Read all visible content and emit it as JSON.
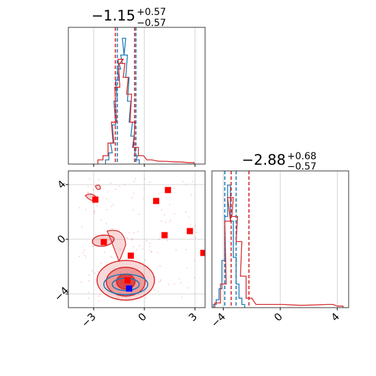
{
  "colors": {
    "blue": "#1f77b4",
    "red": "#d62728",
    "marker_red": "#ff0000",
    "marker_blue": "#0000ff",
    "grid": "#b0b0b0"
  },
  "titles": {
    "p1": {
      "center": "−1.15",
      "sup": "+0.57",
      "sub": "−0.57"
    },
    "p2": {
      "center": "−2.88",
      "sup": "+0.68",
      "sub": "−0.57"
    }
  },
  "chart_data": [
    {
      "type": "histogram",
      "panel": "top-left",
      "xlim": [
        -4.5,
        3.6
      ],
      "xticks": [
        -3,
        0,
        3
      ],
      "grid": true,
      "series": [
        {
          "name": "",
          "color": "#1f77b4",
          "bins": [
            [
              -2.2,
              0.03
            ],
            [
              -2.0,
              0.08
            ],
            [
              -1.9,
              0.15
            ],
            [
              -1.8,
              0.28
            ],
            [
              -1.7,
              0.45
            ],
            [
              -1.6,
              0.6
            ],
            [
              -1.5,
              0.68
            ],
            [
              -1.4,
              0.72
            ],
            [
              -1.3,
              0.78
            ],
            [
              -1.2,
              0.9
            ],
            [
              -1.1,
              0.78
            ],
            [
              -1.0,
              0.62
            ],
            [
              -0.9,
              0.45
            ],
            [
              -0.8,
              0.3
            ],
            [
              -0.7,
              0.2
            ],
            [
              -0.6,
              0.12
            ],
            [
              -0.5,
              0.06
            ],
            [
              -0.4,
              0.03
            ]
          ],
          "lines": [
            -1.6,
            -0.5
          ]
        },
        {
          "name": "",
          "color": "#d62728",
          "bins": [
            [
              -2.6,
              0.03
            ],
            [
              -2.3,
              0.06
            ],
            [
              -2.0,
              0.15
            ],
            [
              -1.8,
              0.3
            ],
            [
              -1.6,
              0.55
            ],
            [
              -1.4,
              0.75
            ],
            [
              -1.3,
              0.72
            ],
            [
              -1.1,
              0.62
            ],
            [
              -0.9,
              0.5
            ],
            [
              -0.7,
              0.3
            ],
            [
              -0.5,
              0.12
            ],
            [
              -0.2,
              0.06
            ],
            [
              0.3,
              0.03
            ],
            [
              1.0,
              0.02
            ],
            [
              2.0,
              0.015
            ],
            [
              2.8,
              0.01
            ]
          ],
          "lines": [
            -1.72,
            -0.58
          ]
        }
      ]
    },
    {
      "type": "histogram",
      "panel": "bottom-right",
      "xlim": [
        -4.8,
        4.8
      ],
      "xticks": [
        -4,
        0,
        4
      ],
      "grid": true,
      "series": [
        {
          "name": "",
          "color": "#1f77b4",
          "bins": [
            [
              -4.6,
              0.02
            ],
            [
              -4.4,
              0.05
            ],
            [
              -4.2,
              0.12
            ],
            [
              -4.0,
              0.3
            ],
            [
              -3.8,
              0.58
            ],
            [
              -3.6,
              0.78
            ],
            [
              -3.4,
              0.55
            ],
            [
              -3.2,
              0.32
            ],
            [
              -3.0,
              0.15
            ],
            [
              -2.8,
              0.06
            ],
            [
              -2.6,
              0.02
            ]
          ],
          "lines": [
            -3.9,
            -3.1
          ]
        },
        {
          "name": "",
          "color": "#d62728",
          "bins": [
            [
              -4.4,
              0.03
            ],
            [
              -4.0,
              0.15
            ],
            [
              -3.7,
              0.55
            ],
            [
              -3.5,
              0.7
            ],
            [
              -3.2,
              0.58
            ],
            [
              -2.9,
              0.42
            ],
            [
              -2.6,
              0.2
            ],
            [
              -2.2,
              0.06
            ],
            [
              -1.5,
              0.02
            ],
            [
              0.0,
              0.02
            ],
            [
              1.5,
              0.015
            ],
            [
              3.5,
              0.02
            ],
            [
              4.2,
              0.01
            ]
          ],
          "lines": [
            -3.45,
            -2.2
          ]
        }
      ]
    },
    {
      "type": "scatter",
      "panel": "bottom-left",
      "xlim": [
        -4.5,
        3.6
      ],
      "ylim": [
        -5,
        5
      ],
      "xticks": [
        -3,
        0,
        3
      ],
      "yticks": [
        -4,
        0,
        4
      ],
      "grid": true,
      "red_markers": [
        [
          -2.9,
          2.9
        ],
        [
          -2.4,
          -0.2
        ],
        [
          -0.8,
          -1.2
        ],
        [
          0.7,
          2.8
        ],
        [
          1.4,
          3.6
        ],
        [
          1.2,
          0.3
        ],
        [
          2.7,
          0.6
        ],
        [
          3.5,
          -1.0
        ],
        [
          -1.0,
          -3.0
        ]
      ],
      "blue_markers": [
        [
          -0.9,
          -3.6
        ]
      ],
      "contours_red": [
        {
          "kind": "outer",
          "level": "outer",
          "cx": -1.1,
          "cy": -3.0,
          "rx": 1.7,
          "ry": 1.45
        },
        {
          "kind": "mid",
          "level": "mid",
          "cx": -1.1,
          "cy": -3.1,
          "rx": 1.15,
          "ry": 1.05
        },
        {
          "kind": "inner",
          "level": "inner",
          "cx": -1.1,
          "cy": -3.1,
          "rx": 0.55,
          "ry": 0.55
        }
      ],
      "contours_blue": [
        {
          "cx": -1.1,
          "cy": -3.3,
          "rx": 1.3,
          "ry": 0.75
        },
        {
          "cx": -1.1,
          "cy": -3.3,
          "rx": 0.8,
          "ry": 0.45
        }
      ]
    }
  ]
}
